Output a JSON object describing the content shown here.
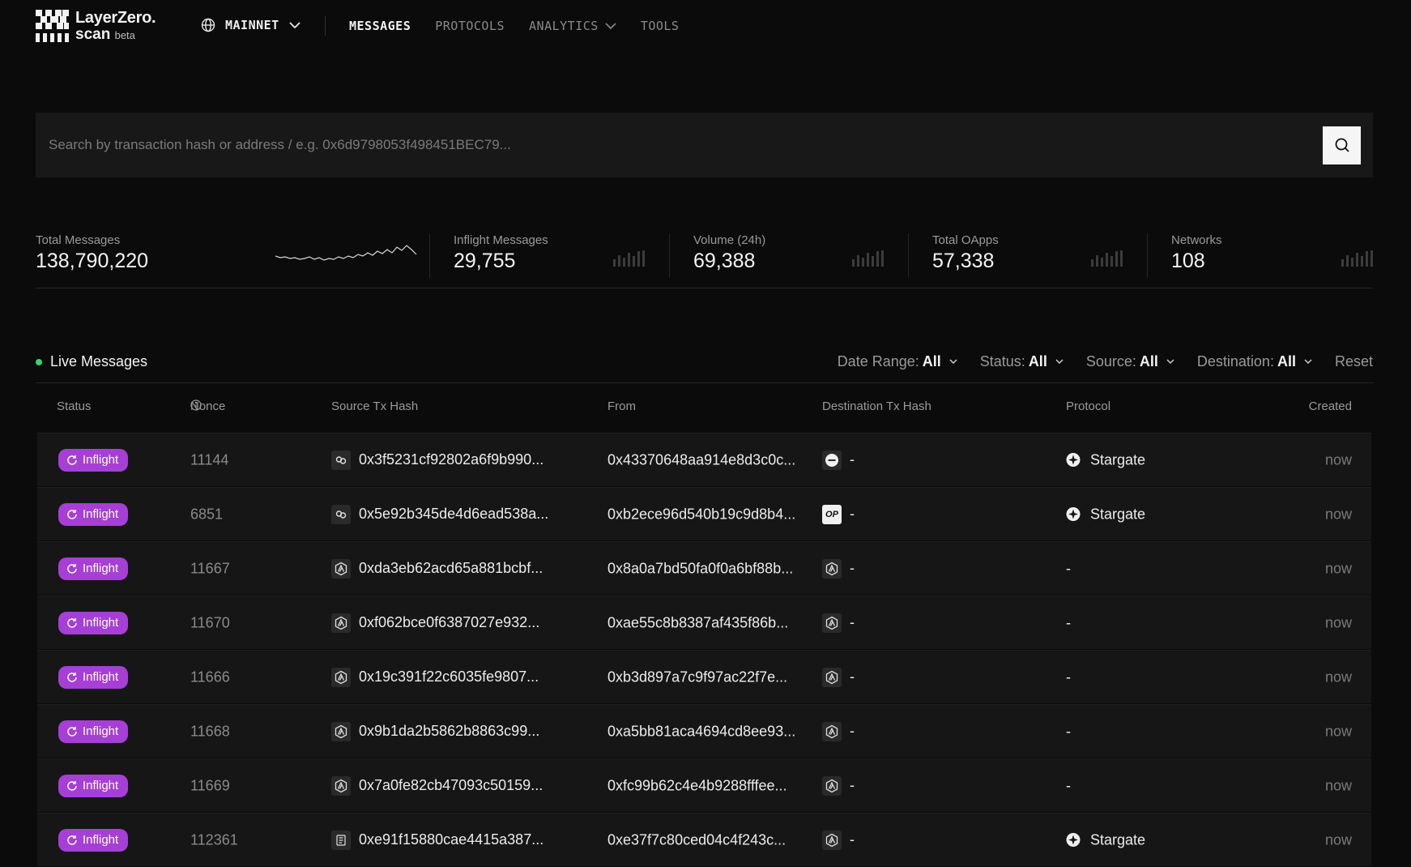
{
  "header": {
    "logo": {
      "line1": "LayerZero.",
      "line2": "scan",
      "line2_suffix": "beta"
    },
    "network": {
      "label": "MAINNET",
      "icon": "globe-icon"
    },
    "nav": [
      {
        "label": "MESSAGES",
        "active": true,
        "has_dropdown": false
      },
      {
        "label": "PROTOCOLS",
        "active": false,
        "has_dropdown": false
      },
      {
        "label": "ANALYTICS",
        "active": false,
        "has_dropdown": true
      },
      {
        "label": "TOOLS",
        "active": false,
        "has_dropdown": false
      }
    ]
  },
  "search": {
    "placeholder": "Search by transaction hash or address / e.g. 0x6d9798053f498451BEC79...",
    "value": "",
    "button_icon": "search-icon"
  },
  "stats": [
    {
      "label": "Total Messages",
      "value": "138,790,220",
      "graphic": "sparkline"
    },
    {
      "label": "Inflight Messages",
      "value": "29,755",
      "graphic": "bars"
    },
    {
      "label": "Volume (24h)",
      "value": "69,388",
      "graphic": "bars"
    },
    {
      "label": "Total OApps",
      "value": "57,338",
      "graphic": "bars"
    },
    {
      "label": "Networks",
      "value": "108",
      "graphic": "bars"
    }
  ],
  "live": {
    "title": "Live Messages",
    "dot_color": "#36d36b",
    "filters": [
      {
        "label": "Date Range:",
        "value": "All"
      },
      {
        "label": "Status:",
        "value": "All"
      },
      {
        "label": "Source:",
        "value": "All"
      },
      {
        "label": "Destination:",
        "value": "All"
      }
    ],
    "reset_label": "Reset"
  },
  "table": {
    "columns": [
      "Status",
      "Nonce",
      "Source Tx Hash",
      "From",
      "Destination Tx Hash",
      "Protocol",
      "Created"
    ],
    "nonce_info_icon": "info-icon",
    "rows": [
      {
        "status": "Inflight",
        "nonce": "11144",
        "src_chain_icon": "chain-link-icon",
        "src_hash": "0x3f5231cf92802a6f9b990...",
        "from": "0x43370648aa914e8d3c0c...",
        "dst_chain_icon": "chain-minus-icon",
        "dst_hash": "-",
        "protocol": "Stargate",
        "created": "now"
      },
      {
        "status": "Inflight",
        "nonce": "6851",
        "src_chain_icon": "chain-link-icon",
        "src_hash": "0x5e92b345de4d6ead538a...",
        "from": "0xb2ece96d540b19c9d8b4...",
        "dst_chain_icon": "chain-op-icon",
        "dst_chain_text": "OP",
        "dst_hash": "-",
        "protocol": "Stargate",
        "created": "now"
      },
      {
        "status": "Inflight",
        "nonce": "11667",
        "src_chain_icon": "chain-arbitrum-icon",
        "src_hash": "0xda3eb62acd65a881bcbf...",
        "from": "0x8a0a7bd50fa0f0a6bf88b...",
        "dst_chain_icon": "chain-arbitrum-icon",
        "dst_hash": "-",
        "protocol": "-",
        "created": "now"
      },
      {
        "status": "Inflight",
        "nonce": "11670",
        "src_chain_icon": "chain-arbitrum-icon",
        "src_hash": "0xf062bce0f6387027e932...",
        "from": "0xae55c8b8387af435f86b...",
        "dst_chain_icon": "chain-arbitrum-icon",
        "dst_hash": "-",
        "protocol": "-",
        "created": "now"
      },
      {
        "status": "Inflight",
        "nonce": "11666",
        "src_chain_icon": "chain-arbitrum-icon",
        "src_hash": "0x19c391f22c6035fe9807...",
        "from": "0xb3d897a7c9f97ac22f7e...",
        "dst_chain_icon": "chain-arbitrum-icon",
        "dst_hash": "-",
        "protocol": "-",
        "created": "now"
      },
      {
        "status": "Inflight",
        "nonce": "11668",
        "src_chain_icon": "chain-arbitrum-icon",
        "src_hash": "0x9b1da2b5862b8863c99...",
        "from": "0xa5bb81aca4694cd8ee93...",
        "dst_chain_icon": "chain-arbitrum-icon",
        "dst_hash": "-",
        "protocol": "-",
        "created": "now"
      },
      {
        "status": "Inflight",
        "nonce": "11669",
        "src_chain_icon": "chain-arbitrum-icon",
        "src_hash": "0x7a0fe82cb47093c50159...",
        "from": "0xfc99b62c4e4b9288fffee...",
        "dst_chain_icon": "chain-arbitrum-icon",
        "dst_hash": "-",
        "protocol": "-",
        "created": "now"
      },
      {
        "status": "Inflight",
        "nonce": "112361",
        "src_chain_icon": "chain-document-icon",
        "src_hash": "0xe91f15880cae4415a387...",
        "from": "0xe37f7c80ced04c4f243c...",
        "dst_chain_icon": "chain-arbitrum-icon",
        "dst_hash": "-",
        "protocol": "Stargate",
        "created": "now"
      }
    ]
  },
  "colors": {
    "background": "#0b0b0b",
    "panel": "#181818",
    "row": "#161616",
    "badge": "#a63fd6",
    "muted": "#9a9a9a"
  }
}
